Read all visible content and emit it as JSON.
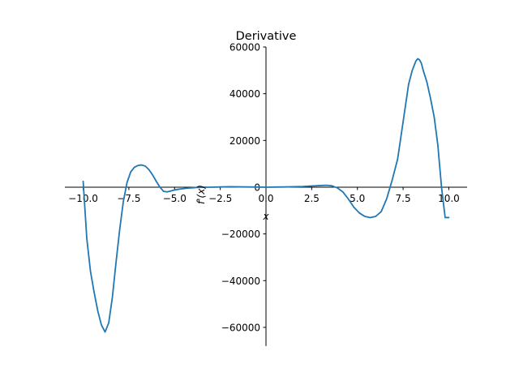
{
  "chart_data": {
    "type": "line",
    "title": "Derivative",
    "xlabel": "x",
    "ylabel": "f'(x)",
    "xlim": [
      -11.0,
      11.0
    ],
    "ylim": [
      -68000,
      60000
    ],
    "grid": false,
    "x_ticks": [
      -10.0,
      -7.5,
      -5.0,
      -2.5,
      0.0,
      2.5,
      5.0,
      7.5,
      10.0
    ],
    "x_tick_labels": [
      "−10.0",
      "−7.5",
      "−5.0",
      "−2.5",
      "0.0",
      "2.5",
      "5.0",
      "7.5",
      "10.0"
    ],
    "y_ticks": [
      -60000,
      -40000,
      -20000,
      0,
      20000,
      40000,
      60000
    ],
    "y_tick_labels": [
      "−60000",
      "−40000",
      "−20000",
      "0",
      "20000",
      "40000",
      "60000"
    ],
    "colors": {
      "line": "#1f77b4",
      "axis": "#000000"
    },
    "series": [
      {
        "x": [
          -10.0,
          -9.8,
          -9.6,
          -9.4,
          -9.2,
          -9.0,
          -8.8,
          -8.6,
          -8.4,
          -8.2,
          -8.0,
          -7.8,
          -7.6,
          -7.4,
          -7.2,
          -7.0,
          -6.8,
          -6.6,
          -6.4,
          -6.2,
          -6.0,
          -5.8,
          -5.6,
          -5.4,
          -5.2,
          -5.0,
          -4.8,
          -4.6,
          -4.4,
          -4.2,
          -4.0,
          -3.8,
          -3.6,
          -3.4,
          -3.2,
          -3.0,
          -2.5,
          -2.0,
          -1.5,
          -1.0,
          -0.5,
          0.0,
          0.5,
          1.0,
          1.5,
          2.0,
          2.5,
          3.0,
          3.3,
          3.6,
          3.9,
          4.2,
          4.5,
          4.8,
          5.1,
          5.4,
          5.7,
          6.0,
          6.3,
          6.6,
          6.9,
          7.2,
          7.5,
          7.8,
          8.0,
          8.2,
          8.3,
          8.4,
          8.5,
          8.6,
          8.8,
          9.0,
          9.2,
          9.4,
          9.6,
          9.8,
          10.0
        ],
        "values": [
          2500,
          -22000,
          -36000,
          -45000,
          -53000,
          -59000,
          -62000,
          -58000,
          -47000,
          -32000,
          -18000,
          -6000,
          2000,
          6500,
          8500,
          9300,
          9500,
          9000,
          7500,
          5200,
          2500,
          0,
          -1800,
          -2000,
          -1600,
          -1200,
          -900,
          -700,
          -500,
          -350,
          -250,
          -150,
          -80,
          -40,
          -20,
          0,
          100,
          200,
          150,
          100,
          50,
          0,
          50,
          100,
          200,
          300,
          500,
          700,
          800,
          600,
          -300,
          -2000,
          -5000,
          -8500,
          -11000,
          -12500,
          -13000,
          -12500,
          -10500,
          -5000,
          3000,
          12000,
          28000,
          44000,
          50000,
          54000,
          55000,
          54500,
          53000,
          50000,
          45000,
          38000,
          30000,
          18000,
          0,
          -13000,
          -13000
        ]
      }
    ]
  }
}
